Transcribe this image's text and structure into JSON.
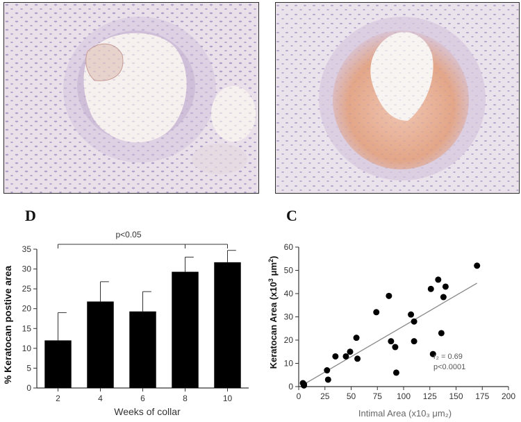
{
  "panels": {
    "left_image": {
      "type": "histology-micrograph",
      "colors": {
        "tissue": "#9a86bd",
        "lumen": "#f6f1ee",
        "stain": "#d4968c"
      }
    },
    "right_image": {
      "type": "histology-micrograph",
      "colors": {
        "tissue": "#9a86bd",
        "lumen": "#f8f4f1",
        "stain": "#e0a27f"
      }
    },
    "label_d": "D",
    "label_c": "C"
  },
  "chart_data": [
    {
      "type": "bar",
      "panel": "D",
      "categories": [
        "2",
        "4",
        "6",
        "8",
        "10"
      ],
      "values": [
        12.0,
        21.8,
        19.3,
        29.3,
        31.7
      ],
      "errors": [
        7.0,
        5.0,
        5.0,
        3.7,
        3.0
      ],
      "xlabel": "Weeks of collar",
      "ylabel": "% Keratocan postive area",
      "ylim": [
        0,
        35
      ],
      "yticks": [
        0,
        5,
        10,
        15,
        20,
        25,
        30,
        35
      ],
      "significance": {
        "text": "p<0.05",
        "from": "2",
        "to": "10",
        "mark": "8"
      },
      "bar_color": "#000000"
    },
    {
      "type": "scatter",
      "panel": "C",
      "points": [
        [
          5,
          1
        ],
        [
          5,
          0.5
        ],
        [
          4,
          1.5
        ],
        [
          27,
          7
        ],
        [
          28,
          3
        ],
        [
          35,
          13
        ],
        [
          45,
          13
        ],
        [
          49,
          15
        ],
        [
          55,
          21
        ],
        [
          56,
          12
        ],
        [
          74,
          32
        ],
        [
          86,
          39
        ],
        [
          88,
          19.5
        ],
        [
          92,
          17
        ],
        [
          93,
          6
        ],
        [
          107,
          31
        ],
        [
          110,
          28
        ],
        [
          110,
          19.5
        ],
        [
          126,
          42
        ],
        [
          128,
          14
        ],
        [
          133,
          46
        ],
        [
          136,
          23
        ],
        [
          138,
          38.5
        ],
        [
          140,
          43
        ],
        [
          170,
          52
        ]
      ],
      "regression": {
        "x": [
          5,
          170
        ],
        "y": [
          1,
          44.5
        ]
      },
      "xlabel": "Intimal Area (x10₃ μm₂)",
      "ylabel_pre": "Keratocan Area (x10",
      "ylabel_sup1": "3",
      "ylabel_mid": " μm",
      "ylabel_sup2": "2",
      "ylabel_post": ")",
      "xlim": [
        0,
        200
      ],
      "ylim": [
        0,
        60
      ],
      "xticks": [
        0,
        25,
        50,
        75,
        100,
        125,
        150,
        175,
        200
      ],
      "yticks": [
        0,
        10,
        20,
        30,
        40,
        50,
        60
      ],
      "annotation_r2": "r₂ = 0.69",
      "annotation_p": "p<0.0001",
      "point_color": "#000000",
      "line_color": "#888888"
    }
  ]
}
